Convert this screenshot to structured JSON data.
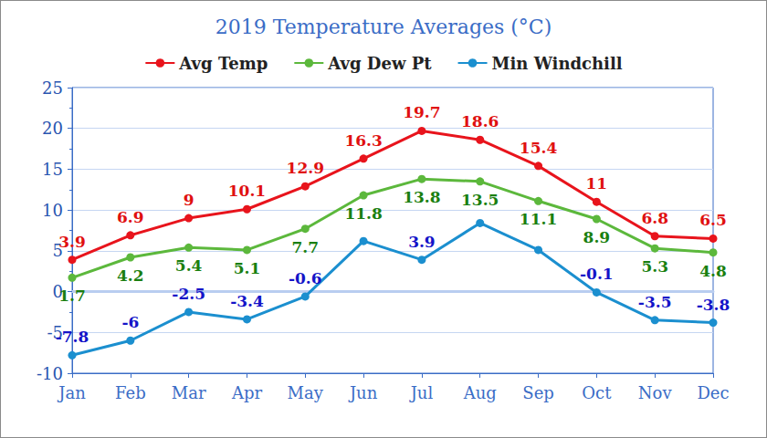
{
  "chart_data": {
    "type": "line",
    "title": "2019 Temperature Averages (°C)",
    "categories": [
      "Jan",
      "Feb",
      "Mar",
      "Apr",
      "May",
      "Jun",
      "Jul",
      "Aug",
      "Sep",
      "Oct",
      "Nov",
      "Dec"
    ],
    "series": [
      {
        "name": "Avg Temp",
        "color": "#e8141c",
        "values": [
          3.9,
          6.9,
          9,
          10.1,
          12.9,
          16.3,
          19.7,
          18.6,
          15.4,
          11,
          6.8,
          6.5
        ]
      },
      {
        "name": "Avg Dew Pt",
        "color": "#5cb83c",
        "values": [
          1.7,
          4.2,
          5.4,
          5.1,
          7.7,
          11.8,
          13.8,
          13.5,
          11.1,
          8.9,
          5.3,
          4.8
        ]
      },
      {
        "name": "Min Windchill",
        "color": "#1b8fcf",
        "values": [
          -7.8,
          -6,
          -2.5,
          -3.4,
          -0.6,
          6.2,
          3.9,
          8.4,
          5.1,
          -0.1,
          -3.5,
          -3.8
        ],
        "value_labels": [
          "-7.8",
          "-6",
          "-2.5",
          "-3.4",
          "-0.6",
          null,
          "3.9",
          null,
          null,
          "-0.1",
          "-3.5",
          "-3.8"
        ]
      }
    ],
    "ylim": [
      -10,
      25
    ],
    "yticks": [
      -10,
      -5,
      0,
      5,
      10,
      15,
      20,
      25
    ],
    "grid": true,
    "legend": "top",
    "data_labels": true,
    "marker": "circle"
  }
}
